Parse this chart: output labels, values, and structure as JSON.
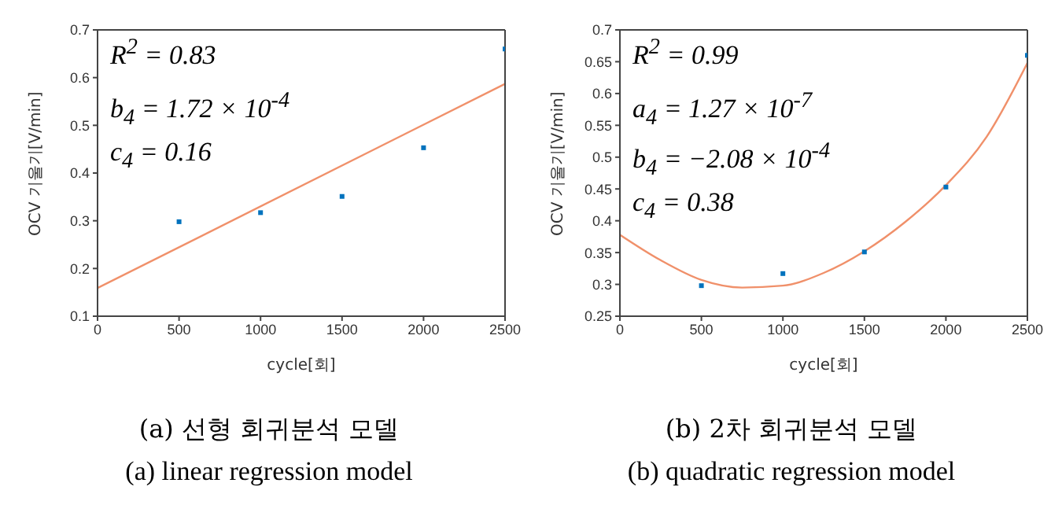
{
  "chart_data": [
    {
      "type": "scatter",
      "title": "(a) 선형 회귀분석 모델",
      "subtitle": "(a) linear regression model",
      "xlabel": "cycle[회]",
      "ylabel": "OCV 기울기[V/min]",
      "xlim": [
        0,
        2500
      ],
      "xticks": [
        0,
        500,
        1000,
        1500,
        2000,
        2500
      ],
      "ylim": [
        0.1,
        0.7
      ],
      "yticks": [
        0.1,
        0.2,
        0.3,
        0.4,
        0.5,
        0.6,
        0.7
      ],
      "annotations": [
        "R$^{2}$ = 0.83",
        "b$_{4}$ = 1.72 × 10$^{-4}$",
        "c$_{4}$ = 0.16"
      ],
      "series": [
        {
          "marker": "square",
          "color": "#0072bd",
          "x": [
            500,
            1000,
            1500,
            2000,
            2500
          ],
          "values": [
            0.298,
            0.317,
            0.351,
            0.453,
            0.66
          ]
        },
        {
          "type": "line",
          "marker": "none",
          "color": "#f0906a",
          "x": [
            0,
            2500
          ],
          "values": [
            0.159,
            0.587
          ]
        }
      ]
    },
    {
      "type": "scatter",
      "title": "(b) 2차 회귀분석 모델",
      "subtitle": "(b) quadratic regression model",
      "xlabel": "cycle[회]",
      "ylabel": "OCV 기울기[V/min]",
      "xlim": [
        0,
        2500
      ],
      "xticks": [
        0,
        500,
        1000,
        1500,
        2000,
        2500
      ],
      "ylim": [
        0.25,
        0.7
      ],
      "yticks": [
        0.25,
        0.3,
        0.35,
        0.4,
        0.45,
        0.5,
        0.55,
        0.6,
        0.65,
        0.7
      ],
      "annotations": [
        "R$^{2}$ = 0.99",
        "a$_{4}$ = 1.27 × 10$^{-7}$",
        "b$_{4}$ = −2.08 × 10$^{-4}$",
        "c$_{4}$ = 0.38"
      ],
      "series": [
        {
          "marker": "square",
          "color": "#0072bd",
          "x": [
            500,
            1000,
            1500,
            2000,
            2500
          ],
          "values": [
            0.298,
            0.317,
            0.351,
            0.453,
            0.66
          ]
        },
        {
          "type": "line",
          "marker": "none",
          "color": "#f0906a",
          "x": [
            0,
            250,
            500,
            750,
            1000,
            1250,
            1500,
            1750,
            2000,
            2250,
            2500
          ],
          "values": [
            0.378,
            0.338,
            0.307,
            0.295,
            0.298,
            0.318,
            0.352,
            0.398,
            0.456,
            0.532,
            0.648
          ]
        }
      ]
    }
  ]
}
